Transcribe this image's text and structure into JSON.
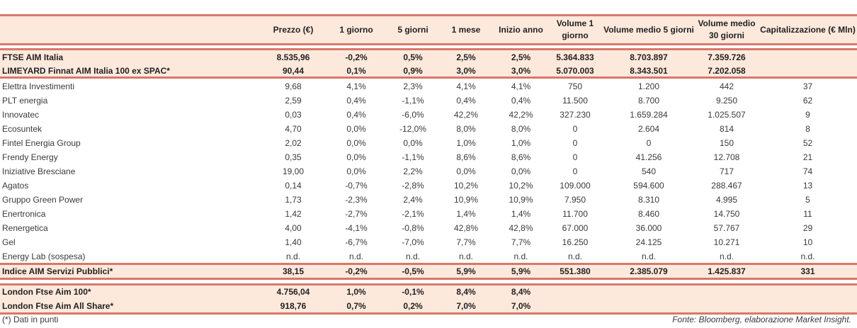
{
  "colors": {
    "band": "#fde9dc",
    "rule": "#d9776a"
  },
  "columns": [
    "",
    "Prezzo (€)",
    "1 giorno",
    "5 giorni",
    "1 mese",
    "Inizio anno",
    "Volume 1 giorno",
    "Volume medio 5 giorni",
    "Volume medio 30 giorni",
    "Capitalizzazione (€ Mln)"
  ],
  "index_rows": [
    [
      "FTSE AIM Italia",
      "8.535,96",
      "-0,2%",
      "0,5%",
      "2,5%",
      "2,5%",
      "5.364.833",
      "8.703.897",
      "7.359.726",
      ""
    ],
    [
      "LIMEYARD Finnat AIM Italia 100 ex SPAC*",
      "90,44",
      "0,1%",
      "0,9%",
      "3,0%",
      "3,0%",
      "5.070.003",
      "8.343.501",
      "7.202.058",
      ""
    ]
  ],
  "rows": [
    [
      "Elettra Investimenti",
      "9,68",
      "4,1%",
      "2,3%",
      "4,1%",
      "4,1%",
      "750",
      "1.200",
      "442",
      "37"
    ],
    [
      "PLT energia",
      "2,59",
      "0,4%",
      "-1,1%",
      "0,4%",
      "0,4%",
      "11.500",
      "8.700",
      "9.250",
      "62"
    ],
    [
      "Innovatec",
      "0,03",
      "0,4%",
      "-6,0%",
      "42,2%",
      "42,2%",
      "327.230",
      "1.659.284",
      "1.025.507",
      "9"
    ],
    [
      "Ecosuntek",
      "4,70",
      "0,0%",
      "-12,0%",
      "8,0%",
      "8,0%",
      "0",
      "2.604",
      "814",
      "8"
    ],
    [
      "Fintel Energia Group",
      "2,02",
      "0,0%",
      "0,0%",
      "1,0%",
      "1,0%",
      "0",
      "0",
      "150",
      "52"
    ],
    [
      "Frendy Energy",
      "0,35",
      "0,0%",
      "-1,1%",
      "8,6%",
      "8,6%",
      "0",
      "41.256",
      "12.708",
      "21"
    ],
    [
      "Iniziative Bresciane",
      "19,00",
      "0,0%",
      "2,2%",
      "0,0%",
      "0,0%",
      "0",
      "540",
      "717",
      "74"
    ],
    [
      "Agatos",
      "0,14",
      "-0,7%",
      "-2,8%",
      "10,2%",
      "10,2%",
      "109.000",
      "594.600",
      "288.467",
      "13"
    ],
    [
      "Gruppo Green Power",
      "1,73",
      "-2,3%",
      "2,4%",
      "10,9%",
      "10,9%",
      "7.950",
      "8.310",
      "4.995",
      "5"
    ],
    [
      "Enertronica",
      "1,42",
      "-2,7%",
      "-2,1%",
      "1,4%",
      "1,4%",
      "11.700",
      "8.460",
      "14.750",
      "11"
    ],
    [
      "Renergetica",
      "4,00",
      "-4,1%",
      "-0,8%",
      "42,8%",
      "42,8%",
      "67.000",
      "36.000",
      "57.767",
      "29"
    ],
    [
      "Gel",
      "1,40",
      "-6,7%",
      "-7,0%",
      "7,7%",
      "7,7%",
      "16.250",
      "24.125",
      "10.271",
      "10"
    ],
    [
      "Energy Lab (sospesa)",
      "n.d.",
      "n.d.",
      "n.d.",
      "n.d.",
      "n.d.",
      "n.d.",
      "n.d.",
      "n.d.",
      "n.d."
    ]
  ],
  "sector_row": [
    "Indice AIM Servizi Pubblici*",
    "38,15",
    "-0,2%",
    "-0,5%",
    "5,9%",
    "5,9%",
    "551.380",
    "2.385.079",
    "1.425.837",
    "331"
  ],
  "london_rows": [
    [
      "London Ftse Aim 100*",
      "4.756,04",
      "1,0%",
      "-0,1%",
      "8,4%",
      "8,4%",
      "",
      "",
      "",
      ""
    ],
    [
      "London Ftse Aim All Share*",
      "918,76",
      "0,7%",
      "0,2%",
      "7,0%",
      "7,0%",
      "",
      "",
      "",
      ""
    ]
  ],
  "footnote": "(*) Dati in punti",
  "source": "Fonte: Bloomberg, elaborazione Market Insight."
}
